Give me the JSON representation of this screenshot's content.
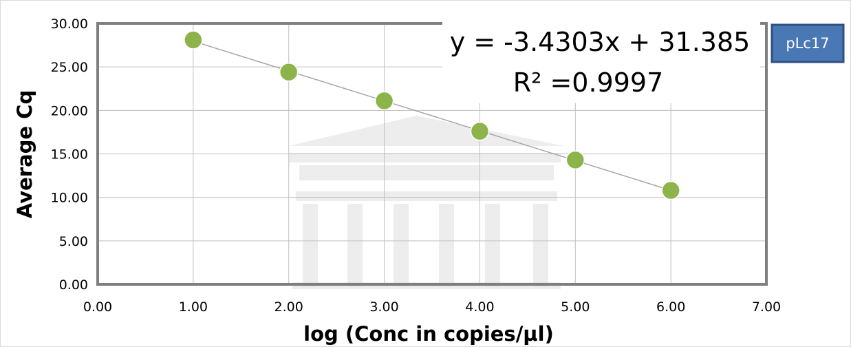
{
  "chart_data": {
    "type": "scatter",
    "title": "",
    "xlabel": "log (Conc in copies/µl)",
    "ylabel": "Average Cq",
    "xlim": [
      0,
      7
    ],
    "ylim": [
      0,
      30
    ],
    "grid": true,
    "x_ticks": [
      0,
      1,
      2,
      3,
      4,
      5,
      6,
      7
    ],
    "y_ticks": [
      0,
      5,
      10,
      15,
      20,
      25,
      30
    ],
    "x_tick_labels": [
      "0.00",
      "1.00",
      "2.00",
      "3.00",
      "4.00",
      "5.00",
      "6.00",
      "7.00"
    ],
    "y_tick_labels": [
      "0.00",
      "5.00",
      "10.00",
      "15.00",
      "20.00",
      "25.00",
      "30.00"
    ],
    "series": [
      {
        "x": [
          1,
          2,
          3,
          4,
          5,
          6
        ],
        "y": [
          28.1,
          24.4,
          21.1,
          17.6,
          14.3,
          10.8
        ],
        "color": "#8db44a"
      }
    ],
    "trendline": {
      "slope": -3.4303,
      "intercept": 31.385,
      "r_squared": 0.9997
    },
    "annotations": {
      "equation": "y = -3.4303x + 31.385",
      "r_squared": "R² =0.9997",
      "badge": "pLc17"
    }
  }
}
